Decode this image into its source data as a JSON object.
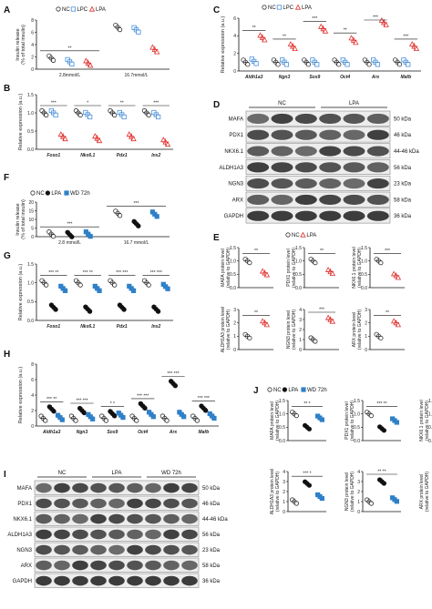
{
  "colors": {
    "nc": "#333333",
    "lpc": "#4a90d9",
    "lpa": "#e0322f",
    "wd": "#2f80c8",
    "lpa_black": "#111111"
  },
  "chart_data": [
    {
      "panel": "A",
      "type": "scatter",
      "ylabel": "Insulin release\n(% of total insulin)",
      "yticks": [
        "0",
        "2",
        "4",
        "6",
        "8"
      ],
      "ylim": [
        0,
        8
      ],
      "legend": [
        "NC",
        "LPC",
        "LPA"
      ],
      "categories": [
        "2.8mmol/L",
        "16.7mmol/L"
      ],
      "series": [
        {
          "name": "NC",
          "values": [
            1.8,
            6.8
          ]
        },
        {
          "name": "LPC",
          "values": [
            1.2,
            6.4
          ]
        },
        {
          "name": "LPA",
          "values": [
            1.0,
            3.2
          ]
        }
      ],
      "annotations": [
        "**"
      ]
    },
    {
      "panel": "B",
      "type": "scatter",
      "ylabel": "Relative expression (a.u.)",
      "yticks": [
        "0.0",
        "0.5",
        "1.0",
        "1.5"
      ],
      "ylim": [
        0,
        1.5
      ],
      "categories": [
        "Foxo1",
        "Nkx6.1",
        "Pdx1",
        "Ins2"
      ],
      "series": [
        {
          "name": "NC",
          "values": [
            1.0,
            1.0,
            1.0,
            1.0
          ]
        },
        {
          "name": "LPC",
          "values": [
            1.0,
            0.95,
            0.95,
            0.95
          ]
        },
        {
          "name": "LPA",
          "values": [
            0.35,
            0.3,
            0.35,
            0.2
          ]
        }
      ],
      "annotations": [
        "***",
        "*",
        "**",
        "***"
      ]
    },
    {
      "panel": "C",
      "type": "scatter",
      "ylabel": "Relative expression (a.u.)",
      "yticks": [
        "0",
        "2",
        "4",
        "6"
      ],
      "ylim": [
        0,
        6
      ],
      "legend": [
        "NC",
        "LPC",
        "LPA"
      ],
      "categories": [
        "Aldh1a3",
        "Ngn3",
        "Sox9",
        "Oct4",
        "Arx",
        "Mafb"
      ],
      "series": [
        {
          "name": "NC",
          "values": [
            1.0,
            1.0,
            1.0,
            1.0,
            1.0,
            1.0
          ]
        },
        {
          "name": "LPC",
          "values": [
            1.1,
            1.0,
            1.0,
            1.0,
            1.0,
            1.0
          ]
        },
        {
          "name": "LPA",
          "values": [
            3.8,
            2.8,
            4.8,
            3.5,
            5.5,
            2.8
          ]
        }
      ],
      "annotations": [
        "**",
        "**",
        "***",
        "**",
        "***",
        "***"
      ]
    },
    {
      "panel": "E",
      "type": "scatter",
      "legend": [
        "NC",
        "LPA"
      ],
      "subplots": [
        {
          "ylabel": "MAFA protein level\n(relative to GAPDH)",
          "yticks": [
            "0.0",
            "0.5",
            "1.0",
            "1.5"
          ],
          "values": {
            "NC": 1.0,
            "LPA": 0.55
          },
          "annotation": "**"
        },
        {
          "ylabel": "PDX1 protein level\n(relative to GAPDH)",
          "yticks": [
            "0.0",
            "0.5",
            "1.0",
            "1.5"
          ],
          "values": {
            "NC": 1.0,
            "LPA": 0.6
          },
          "annotation": "**"
        },
        {
          "ylabel": "NKX6.1 protein level\n(relative to GAPDH)",
          "yticks": [
            "0.0",
            "0.5",
            "1.0",
            "1.5"
          ],
          "values": {
            "NC": 1.0,
            "LPA": 0.45
          },
          "annotation": "***"
        },
        {
          "ylabel": "ALDH1A3 protein level\n(relative to GAPDH)",
          "yticks": [
            "0",
            "1",
            "2",
            "3"
          ],
          "values": {
            "NC": 1.0,
            "LPA": 2.0
          },
          "annotation": "**"
        },
        {
          "ylabel": "NGN3 protein level\n(relative to GAPDH)",
          "yticks": [
            "0",
            "1",
            "2",
            "3",
            "4"
          ],
          "values": {
            "NC": 1.0,
            "LPA": 3.0
          },
          "annotation": "***"
        },
        {
          "ylabel": "ARX protein level\n(relative to GAPDH)",
          "yticks": [
            "0",
            "1",
            "2",
            "3"
          ],
          "values": {
            "NC": 1.0,
            "LPA": 2.0
          },
          "annotation": "**"
        }
      ]
    },
    {
      "panel": "F",
      "type": "scatter",
      "ylabel": "Insulin release\n(% of total insulin)",
      "yticks": [
        "0",
        "5",
        "10",
        "15",
        "20"
      ],
      "ylim": [
        0,
        20
      ],
      "legend": [
        "NC",
        "LPA",
        "WD 72h"
      ],
      "categories": [
        "2.8 mmol/L",
        "16.7 mmol/L"
      ],
      "series": [
        {
          "name": "NC",
          "values": [
            1.5,
            13.5
          ]
        },
        {
          "name": "LPA",
          "values": [
            1.2,
            7.5
          ]
        },
        {
          "name": "WD 72h",
          "values": [
            1.5,
            13.0
          ]
        }
      ],
      "annotations": [
        "***",
        "***"
      ]
    },
    {
      "panel": "G",
      "type": "scatter",
      "ylabel": "Relative expression (a.u.)",
      "yticks": [
        "0.0",
        "0.5",
        "1.0",
        "1.5"
      ],
      "ylim": [
        0,
        1.5
      ],
      "categories": [
        "Foxo1",
        "Nkx6.1",
        "Pdx1",
        "Ins2"
      ],
      "series": [
        {
          "name": "NC",
          "values": [
            1.0,
            1.0,
            1.0,
            1.0
          ]
        },
        {
          "name": "LPA",
          "values": [
            0.35,
            0.3,
            0.35,
            0.3
          ]
        },
        {
          "name": "WD 72h",
          "values": [
            0.85,
            0.85,
            0.85,
            0.9
          ]
        }
      ],
      "annotations": [
        "*** **",
        "*** **",
        "*** ***",
        "*** ***"
      ]
    },
    {
      "panel": "H",
      "type": "scatter",
      "ylabel": "Relative expression (a.u.)",
      "yticks": [
        "0",
        "2",
        "4",
        "6",
        "8"
      ],
      "ylim": [
        0,
        8
      ],
      "categories": [
        "Aldh1a3",
        "Ngn3",
        "Sox9",
        "Oct4",
        "Arx",
        "Mafb"
      ],
      "series": [
        {
          "name": "NC",
          "values": [
            1.0,
            1.0,
            1.0,
            1.0,
            1.0,
            1.0
          ]
        },
        {
          "name": "LPA",
          "values": [
            2.2,
            2.0,
            1.6,
            2.6,
            5.5,
            2.3
          ]
        },
        {
          "name": "WD 72h",
          "values": [
            1.1,
            1.2,
            1.4,
            1.5,
            1.5,
            1.3
          ]
        }
      ],
      "annotations": [
        "*** **",
        "*** ***",
        "* *",
        "*** ***",
        "*** ***",
        "*** ***"
      ]
    },
    {
      "panel": "J",
      "type": "scatter",
      "legend": [
        "NC",
        "LPA",
        "WD 72h"
      ],
      "subplots": [
        {
          "ylabel": "MAFA protein level\n(relative to GAPDH)",
          "yticks": [
            "0.0",
            "0.5",
            "1.0",
            "1.5"
          ],
          "values": {
            "NC": 1.0,
            "LPA": 0.5,
            "WD 72h": 0.85
          },
          "annotation": "** *"
        },
        {
          "ylabel": "PDX1 protein level\n(relative to GAPDH)",
          "yticks": [
            "0.0",
            "0.5",
            "1.0",
            "1.5"
          ],
          "values": {
            "NC": 1.0,
            "LPA": 0.45,
            "WD 72h": 0.75
          },
          "annotation": "*** **"
        },
        {
          "ylabel": "NKX6.1 protein level\n(relative to GAPDH)",
          "yticks": [
            "0.0",
            "0.5",
            "1.0",
            "1.5"
          ],
          "values": {
            "NC": 1.0,
            "LPA": 0.35,
            "WD 72h": 0.7
          },
          "annotation": "** *"
        },
        {
          "ylabel": "ALDH1A3 protein level\n(relative to GAPDH)",
          "yticks": [
            "0",
            "1",
            "2",
            "3",
            "4"
          ],
          "values": {
            "NC": 1.0,
            "LPA": 2.8,
            "WD 72h": 1.5
          },
          "annotation": "*** *"
        },
        {
          "ylabel": "NGN3 protein level\n(relative to GAPDH)",
          "yticks": [
            "0",
            "1",
            "2",
            "3",
            "4"
          ],
          "values": {
            "NC": 1.0,
            "LPA": 3.0,
            "WD 72h": 1.2
          },
          "annotation": "** **"
        },
        {
          "ylabel": "ARX protein level\n(relative to GAPDH)",
          "yticks": [
            "0",
            "1",
            "2",
            "3",
            "4"
          ],
          "values": {
            "NC": 1.0,
            "LPA": 3.2,
            "WD 72h": 1.2
          },
          "annotation": "*** **"
        }
      ]
    }
  ],
  "blots": {
    "D": {
      "groups": [
        "NC",
        "LPA"
      ],
      "rows": [
        {
          "name": "MAFA",
          "kda": "50 kDa"
        },
        {
          "name": "PDX1",
          "kda": "46 kDa"
        },
        {
          "name": "NKX6.1",
          "kda": "44-46 kDa"
        },
        {
          "name": "ALDH1A3",
          "kda": "56 kDa"
        },
        {
          "name": "NGN3",
          "kda": "23 kDa"
        },
        {
          "name": "ARX",
          "kda": "58 kDa"
        },
        {
          "name": "GAPDH",
          "kda": "36 kDa"
        }
      ]
    },
    "I": {
      "groups": [
        "NC",
        "LPA",
        "WD 72h"
      ],
      "rows": [
        {
          "name": "MAFA",
          "kda": "50 kDa"
        },
        {
          "name": "PDX1",
          "kda": "46 kDa"
        },
        {
          "name": "NKX6.1",
          "kda": "44-46 kDa"
        },
        {
          "name": "ALDH1A3",
          "kda": "56 kDa"
        },
        {
          "name": "NGN3",
          "kda": "23 kDa"
        },
        {
          "name": "ARX",
          "kda": "58 kDa"
        },
        {
          "name": "GAPDH",
          "kda": "36 kDa"
        }
      ]
    }
  }
}
